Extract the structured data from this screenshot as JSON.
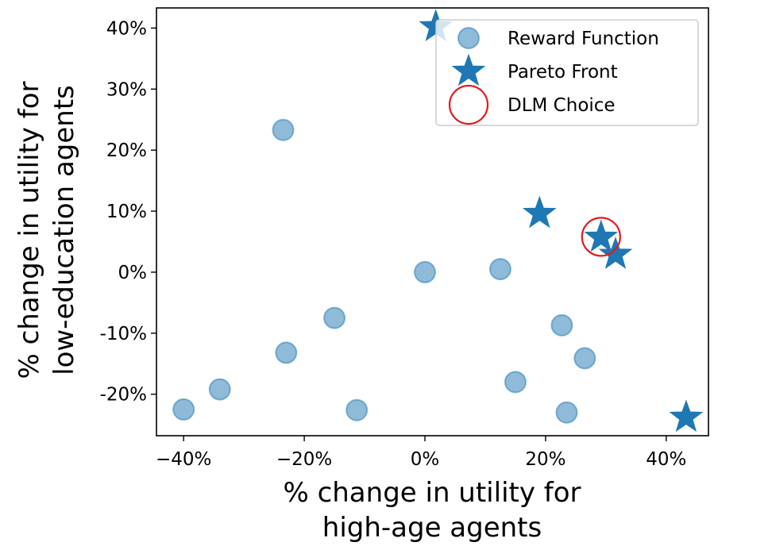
{
  "chart_data": {
    "type": "scatter",
    "title": "",
    "xlabel_lines": [
      "% change in utility for",
      "high-age agents"
    ],
    "ylabel_lines": [
      "% change in utility for",
      "low-education agents"
    ],
    "xlim": [
      -44.5,
      47
    ],
    "ylim": [
      -26.8,
      43.3
    ],
    "x_ticks": [
      -40,
      -20,
      0,
      20,
      40
    ],
    "y_ticks": [
      -20,
      -10,
      0,
      10,
      20,
      30,
      40
    ],
    "x_tick_labels": [
      "−40%",
      "−20%",
      "0%",
      "20%",
      "40%"
    ],
    "y_tick_labels": [
      "-20%",
      "-10%",
      "0%",
      "10%",
      "20%",
      "30%",
      "40%"
    ],
    "grid": false,
    "legend_position": "top-right",
    "series": [
      {
        "name": "Reward Function",
        "marker": "circle",
        "color": "#1f77b4",
        "points": [
          {
            "x": -23.5,
            "y": 23.3
          },
          {
            "x": 0.0,
            "y": 0.0
          },
          {
            "x": 12.5,
            "y": 0.5
          },
          {
            "x": -15.0,
            "y": -7.5
          },
          {
            "x": -23.0,
            "y": -13.2
          },
          {
            "x": 22.7,
            "y": -8.7
          },
          {
            "x": 26.5,
            "y": -14.1
          },
          {
            "x": 15.0,
            "y": -18.0
          },
          {
            "x": -34.0,
            "y": -19.2
          },
          {
            "x": -40.0,
            "y": -22.5
          },
          {
            "x": -11.3,
            "y": -22.6
          },
          {
            "x": 23.5,
            "y": -23.0
          }
        ]
      },
      {
        "name": "Pareto Front",
        "marker": "star",
        "color": "#1f77b4",
        "points": [
          {
            "x": 1.8,
            "y": 40.2
          },
          {
            "x": 19.0,
            "y": 9.6
          },
          {
            "x": 29.2,
            "y": 5.7
          },
          {
            "x": 31.6,
            "y": 2.9
          },
          {
            "x": 43.3,
            "y": -23.8
          }
        ]
      },
      {
        "name": "DLM Choice",
        "marker": "open-circle",
        "color": "#e41a1c",
        "points": [
          {
            "x": 29.2,
            "y": 5.8
          }
        ]
      }
    ]
  }
}
